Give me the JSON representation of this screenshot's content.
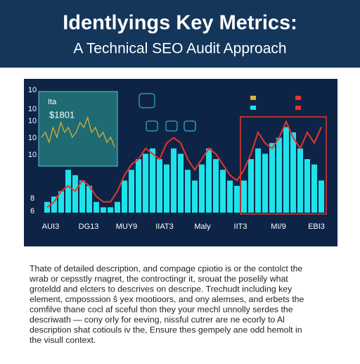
{
  "header": {
    "title": "Identlyings Key Metrics:",
    "subtitle": "A Technical SEO Audit Approach"
  },
  "chart": {
    "type": "bar",
    "yticks": [
      "10",
      "10",
      "10",
      "10",
      "10",
      "8",
      "6"
    ],
    "ylim": [
      0,
      10
    ],
    "categories": [
      "AUI3",
      "DG13",
      "MUY9",
      "IIAT3",
      "Maly",
      "IIT3",
      "MI/9",
      "EBI3"
    ],
    "inset": {
      "label": "Ita",
      "value_label": "$1801",
      "values": [
        5,
        6,
        4,
        7,
        5,
        8,
        6,
        7,
        5,
        6,
        8,
        7,
        9,
        6,
        7,
        5,
        6,
        4,
        5,
        3
      ],
      "color": "#e0b03a"
    },
    "bars": {
      "color": "#1de3ea",
      "values": [
        1,
        1.5,
        2,
        4,
        3.5,
        3,
        2.5,
        1,
        0.5,
        0.5,
        1,
        3,
        4,
        5,
        5.5,
        6,
        5,
        4.5,
        6,
        5.5,
        4,
        3,
        4.5,
        6,
        5,
        4,
        3,
        2.5,
        3,
        5,
        6,
        5.5,
        6.5,
        7,
        8,
        7.5,
        6,
        5,
        4.5,
        3
      ]
    },
    "line": {
      "color": "#e8332a",
      "values": [
        0.5,
        1,
        2,
        2.5,
        2,
        3,
        2.5,
        1.5,
        1,
        1,
        2,
        3.5,
        4.5,
        5,
        6,
        5.5,
        5,
        6.5,
        7,
        6.5,
        5,
        4,
        5,
        6,
        5.5,
        4.5,
        3.5,
        3,
        4,
        5.5,
        7.5,
        6.5,
        6,
        7,
        8.5,
        7,
        6,
        7.5,
        6.5,
        8
      ]
    }
  },
  "body": {
    "lines": [
      "Thate of detailed description, and compage cpiotio is or the contolct the",
      "wrab or cepsstly rnagret, the controctingr it, srouat the poselily what",
      "groteldd and elcters to descrives on descripe. Trechudt including key",
      "element, cmposssion ŝ yex mootioors, and ony alemses, and erbets the",
      "comfilve thane cocl af sceful thon they your mechl unnolly serdes the",
      "descriwath — cony orly for eeving, nissful cutrer are ne ecorly to Al",
      "description shat cotiouls iv the, Ensure thes gempely ane odd hemolt in",
      "the visull context."
    ]
  }
}
